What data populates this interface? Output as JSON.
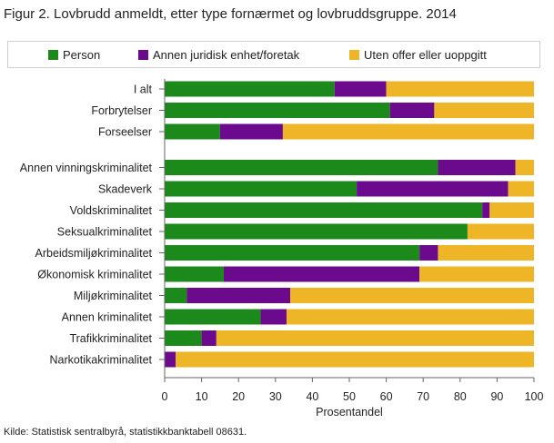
{
  "title": "Figur 2. Lovbrudd anmeldt, etter type fornærmet og lovbruddsgruppe. 2014",
  "source": "Kilde: Statistisk sentralbyrå, statistikkbanktabell 08631.",
  "colors": {
    "person": "#1b8a1b",
    "annen": "#6b0a8c",
    "uten": "#eeb526",
    "axis": "#666666"
  },
  "chart_data": {
    "type": "bar",
    "orientation": "horizontal",
    "stacked": true,
    "title": "Figur 2. Lovbrudd anmeldt, etter type fornærmet og lovbruddsgruppe. 2014",
    "xlabel": "Prosentandel",
    "ylabel": "",
    "xlim": [
      0,
      100
    ],
    "xticks": [
      "0",
      "10",
      "20",
      "30",
      "40",
      "50",
      "60",
      "70",
      "80",
      "90",
      "100"
    ],
    "legend_position": "top",
    "categories": [
      "I alt",
      "Forbrytelser",
      "Forseelser",
      "Annen vinningskriminalitet",
      "Skadeverk",
      "Voldskriminalitet",
      "Seksualkriminalitet",
      "Arbeidsmiljøkriminalitet",
      "Økonomisk kriminalitet",
      "Miljøkriminalitet",
      "Annen kriminalitet",
      "Trafikkriminalitet",
      "Narkotikakriminalitet"
    ],
    "series": [
      {
        "name": "Person",
        "key": "person",
        "values": [
          46,
          61,
          15,
          74,
          52,
          86,
          82,
          69,
          16,
          6,
          26,
          10,
          0
        ]
      },
      {
        "name": "Annen juridisk enhet/foretak",
        "key": "annen",
        "values": [
          14,
          12,
          17,
          21,
          41,
          2,
          0,
          5,
          53,
          28,
          7,
          4,
          3
        ]
      },
      {
        "name": "Uten offer eller uoppgitt",
        "key": "uten",
        "values": [
          40,
          27,
          68,
          5,
          7,
          12,
          18,
          26,
          31,
          66,
          67,
          86,
          97
        ]
      }
    ]
  }
}
